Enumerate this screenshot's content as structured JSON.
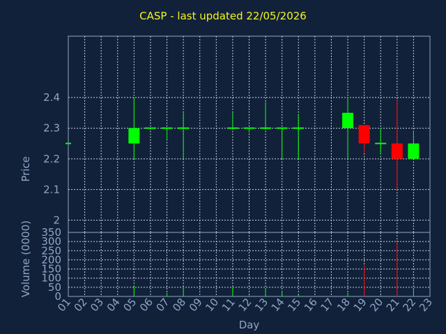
{
  "chart_data": {
    "type": "candlestick",
    "title": "CASP - last updated 22/05/2026",
    "xlabel": "Day",
    "price_panel": {
      "ylabel": "Price",
      "y_ticks": [
        "2",
        "2.1",
        "2.2",
        "2.3",
        "2.4"
      ],
      "ylim": [
        1.96,
        2.6
      ]
    },
    "volume_panel": {
      "ylabel": "Volume (0000)",
      "y_ticks": [
        "0",
        "50",
        "100",
        "150",
        "200",
        "250",
        "300",
        "350"
      ],
      "ylim": [
        0,
        350
      ]
    },
    "x_ticks": [
      "01",
      "02",
      "03",
      "04",
      "05",
      "06",
      "07",
      "08",
      "09",
      "10",
      "11",
      "12",
      "13",
      "14",
      "15",
      "16",
      "17",
      "18",
      "19",
      "20",
      "21",
      "22",
      "23"
    ],
    "grid": true,
    "colors": {
      "up": "#00ff00",
      "down": "#ff0000",
      "title": "#f5f51e",
      "axis": "#8fa6c6",
      "grid": "#c8d2e0",
      "plot_bg": "#11213a"
    },
    "candles": [
      {
        "day": "01",
        "open": 2.25,
        "high": 2.25,
        "low": 2.25,
        "close": 2.25,
        "volume": 0
      },
      {
        "day": "05",
        "open": 2.25,
        "high": 2.4,
        "low": 2.2,
        "close": 2.3,
        "volume": 60
      },
      {
        "day": "06",
        "open": 2.3,
        "high": 2.3,
        "low": 2.3,
        "close": 2.3,
        "volume": 2
      },
      {
        "day": "07",
        "open": 2.3,
        "high": 2.3,
        "low": 2.265,
        "close": 2.3,
        "volume": 20
      },
      {
        "day": "08",
        "open": 2.3,
        "high": 2.35,
        "low": 2.2,
        "close": 2.3,
        "volume": 45
      },
      {
        "day": "11",
        "open": 2.3,
        "high": 2.35,
        "low": 2.3,
        "close": 2.3,
        "volume": 50
      },
      {
        "day": "12",
        "open": 2.3,
        "high": 2.3,
        "low": 2.285,
        "close": 2.3,
        "volume": 5
      },
      {
        "day": "13",
        "open": 2.3,
        "high": 2.385,
        "low": 2.3,
        "close": 2.3,
        "volume": 45
      },
      {
        "day": "14",
        "open": 2.3,
        "high": 2.3,
        "low": 2.2,
        "close": 2.3,
        "volume": 30
      },
      {
        "day": "15",
        "open": 2.3,
        "high": 2.345,
        "low": 2.2,
        "close": 2.3,
        "volume": 10
      },
      {
        "day": "18",
        "open": 2.3,
        "high": 2.4,
        "low": 2.2,
        "close": 2.35,
        "volume": 20
      },
      {
        "day": "19",
        "open": 2.31,
        "high": 2.31,
        "low": 2.22,
        "close": 2.25,
        "volume": 170
      },
      {
        "day": "20",
        "open": 2.25,
        "high": 2.3,
        "low": 2.215,
        "close": 2.25,
        "volume": 5
      },
      {
        "day": "21",
        "open": 2.25,
        "high": 2.395,
        "low": 2.1,
        "close": 2.2,
        "volume": 300
      },
      {
        "day": "22",
        "open": 2.2,
        "high": 2.29,
        "low": 2.2,
        "close": 2.25,
        "volume": 40
      }
    ]
  }
}
